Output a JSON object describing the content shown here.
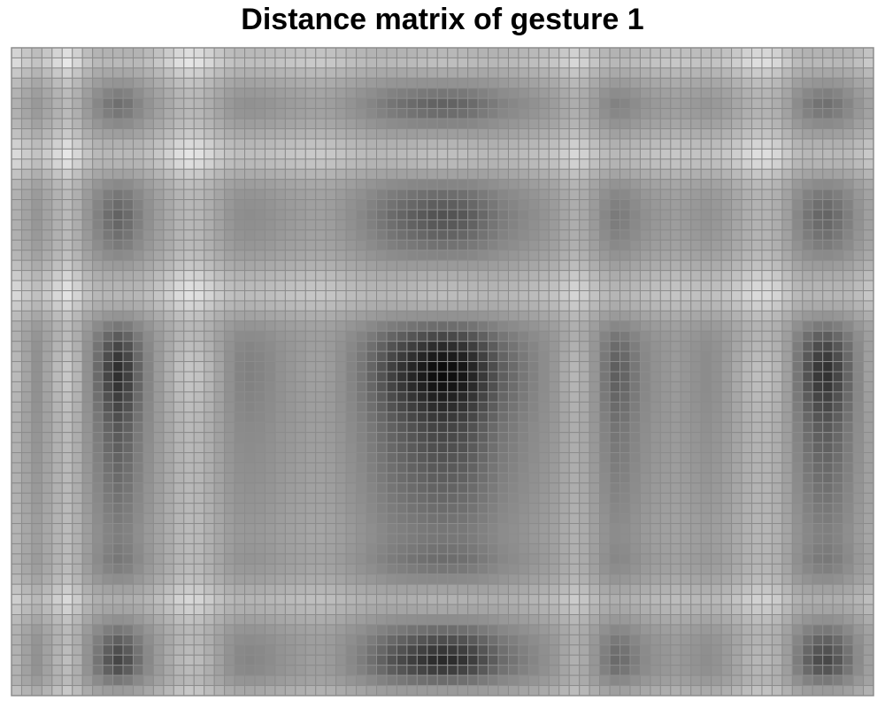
{
  "chart_data": {
    "type": "heatmap",
    "title": "Distance matrix of gesture 1",
    "xlabel": "",
    "ylabel": "",
    "colormap": "grayscale",
    "value_range": [
      0,
      1
    ],
    "low_color": "#ffffff",
    "high_color": "#000000",
    "grid_color": "#8c8c8c",
    "grid": true,
    "n_cols": 85,
    "n_rows": 64,
    "col_profile": [
      0.12,
      0.22,
      0.3,
      0.22,
      0.12,
      0.05,
      0.14,
      0.3,
      0.44,
      0.56,
      0.63,
      0.58,
      0.46,
      0.35,
      0.26,
      0.18,
      0.1,
      0.06,
      0.08,
      0.14,
      0.22,
      0.3,
      0.35,
      0.36,
      0.35,
      0.33,
      0.3,
      0.28,
      0.26,
      0.24,
      0.24,
      0.26,
      0.3,
      0.35,
      0.4,
      0.46,
      0.52,
      0.58,
      0.62,
      0.66,
      0.69,
      0.72,
      0.73,
      0.72,
      0.7,
      0.66,
      0.6,
      0.54,
      0.48,
      0.44,
      0.4,
      0.36,
      0.32,
      0.28,
      0.2,
      0.14,
      0.18,
      0.28,
      0.4,
      0.48,
      0.46,
      0.4,
      0.34,
      0.3,
      0.28,
      0.26,
      0.28,
      0.3,
      0.32,
      0.3,
      0.26,
      0.2,
      0.14,
      0.1,
      0.1,
      0.14,
      0.24,
      0.4,
      0.52,
      0.6,
      0.62,
      0.56,
      0.46,
      0.34,
      0.24
    ],
    "row_profile": [
      0.1,
      0.06,
      0.18,
      0.3,
      0.42,
      0.5,
      0.46,
      0.36,
      0.24,
      0.12,
      0.06,
      0.1,
      0.22,
      0.36,
      0.46,
      0.52,
      0.56,
      0.54,
      0.5,
      0.44,
      0.36,
      0.26,
      0.16,
      0.1,
      0.08,
      0.16,
      0.3,
      0.46,
      0.6,
      0.7,
      0.76,
      0.8,
      0.8,
      0.78,
      0.74,
      0.7,
      0.66,
      0.62,
      0.6,
      0.58,
      0.56,
      0.54,
      0.52,
      0.5,
      0.48,
      0.46,
      0.44,
      0.42,
      0.42,
      0.44,
      0.46,
      0.42,
      0.34,
      0.22,
      0.14,
      0.2,
      0.32,
      0.46,
      0.58,
      0.66,
      0.7,
      0.64,
      0.46,
      0.26
    ],
    "value_formula": "value[r][c] = (col_profile[c] + row_profile[r]) / 2 * (1 + 0.9 * (col_profile[c] - 0.5) * (row_profile[r] - 0.5) * 4), clamped to value_range"
  }
}
